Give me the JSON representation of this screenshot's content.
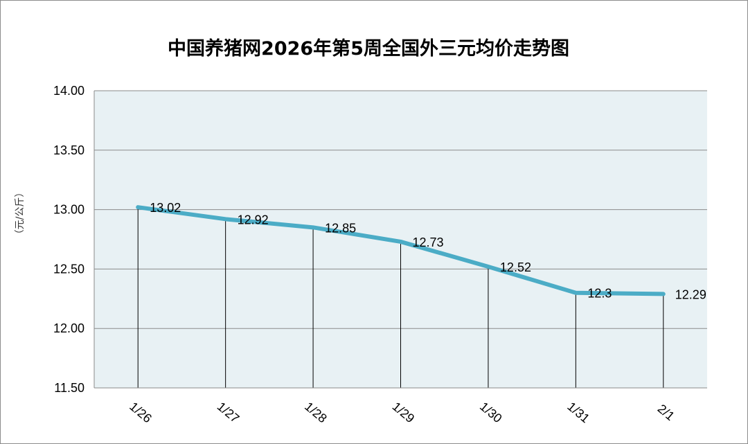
{
  "chart_data": {
    "type": "line",
    "title": "中国养猪网2026年第5周全国外三元均价走势图",
    "ylabel": "（元/公斤）",
    "xlabel": "",
    "categories": [
      "1/26",
      "1/27",
      "1/28",
      "1/29",
      "1/30",
      "1/31",
      "2/1"
    ],
    "series": [
      {
        "values": [
          13.02,
          12.92,
          12.85,
          12.73,
          12.52,
          12.3,
          12.29
        ],
        "data_labels": [
          "13.02",
          "12.92",
          "12.85",
          "12.73",
          "12.52",
          "12.3",
          "12.29"
        ]
      }
    ],
    "ylim": [
      11.5,
      14.0
    ],
    "yticks": [
      "11.50",
      "12.00",
      "12.50",
      "13.00",
      "13.50",
      "14.00"
    ],
    "grid": true,
    "drop_lines": true,
    "line_color": "#4bacc6",
    "plot_background": "#e8f1f4"
  }
}
